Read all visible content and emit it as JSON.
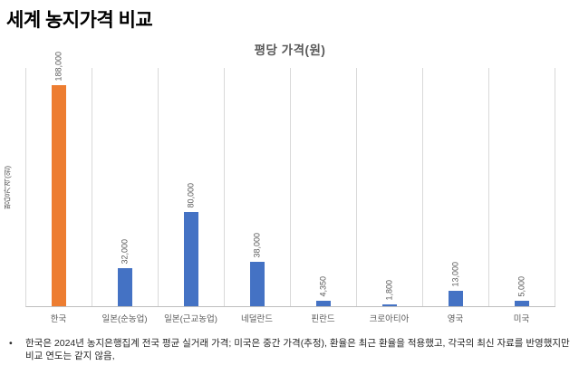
{
  "page": {
    "title": "세계 농지가격 비교"
  },
  "chart": {
    "title": "평당 가격(원)",
    "y_axis_title": "평당가격(원)",
    "colors": {
      "bar_default": "#4472c4",
      "bar_highlight": "#ed7d31",
      "gridline": "#d9d9d9",
      "axis_line": "#bfbfbf",
      "label_text": "#595959"
    }
  },
  "chart_data": {
    "type": "bar",
    "title": "평당 가격(원)",
    "xlabel": "",
    "ylabel": "평당가격(원)",
    "categories": [
      "한국",
      "일본(순농업)",
      "일본(근교농업)",
      "네덜란드",
      "핀란드",
      "크로아티아",
      "영국",
      "미국"
    ],
    "values": [
      188000,
      32000,
      80000,
      38000,
      4350,
      1800,
      13000,
      5000
    ],
    "value_labels": [
      "188,000",
      "32,000",
      "80,000",
      "38,000",
      "4,350",
      "1,800",
      "13,000",
      "5,000"
    ],
    "highlight_index": 0,
    "ylim": [
      0,
      200000
    ],
    "grid": "vertical category separators only",
    "legend": "none",
    "value_label_rotation": "vertical, reading bottom-to-top"
  },
  "footnote": {
    "bullet": "•",
    "text": "한국은 2024년 농지은행집계 전국 평균 실거래 가격; 미국은 중간 가격(추정), 환율은 최근 환율을 적용했고, 각국의 최신 자료를 반영했지만 비교 연도는 같지 않음,"
  }
}
